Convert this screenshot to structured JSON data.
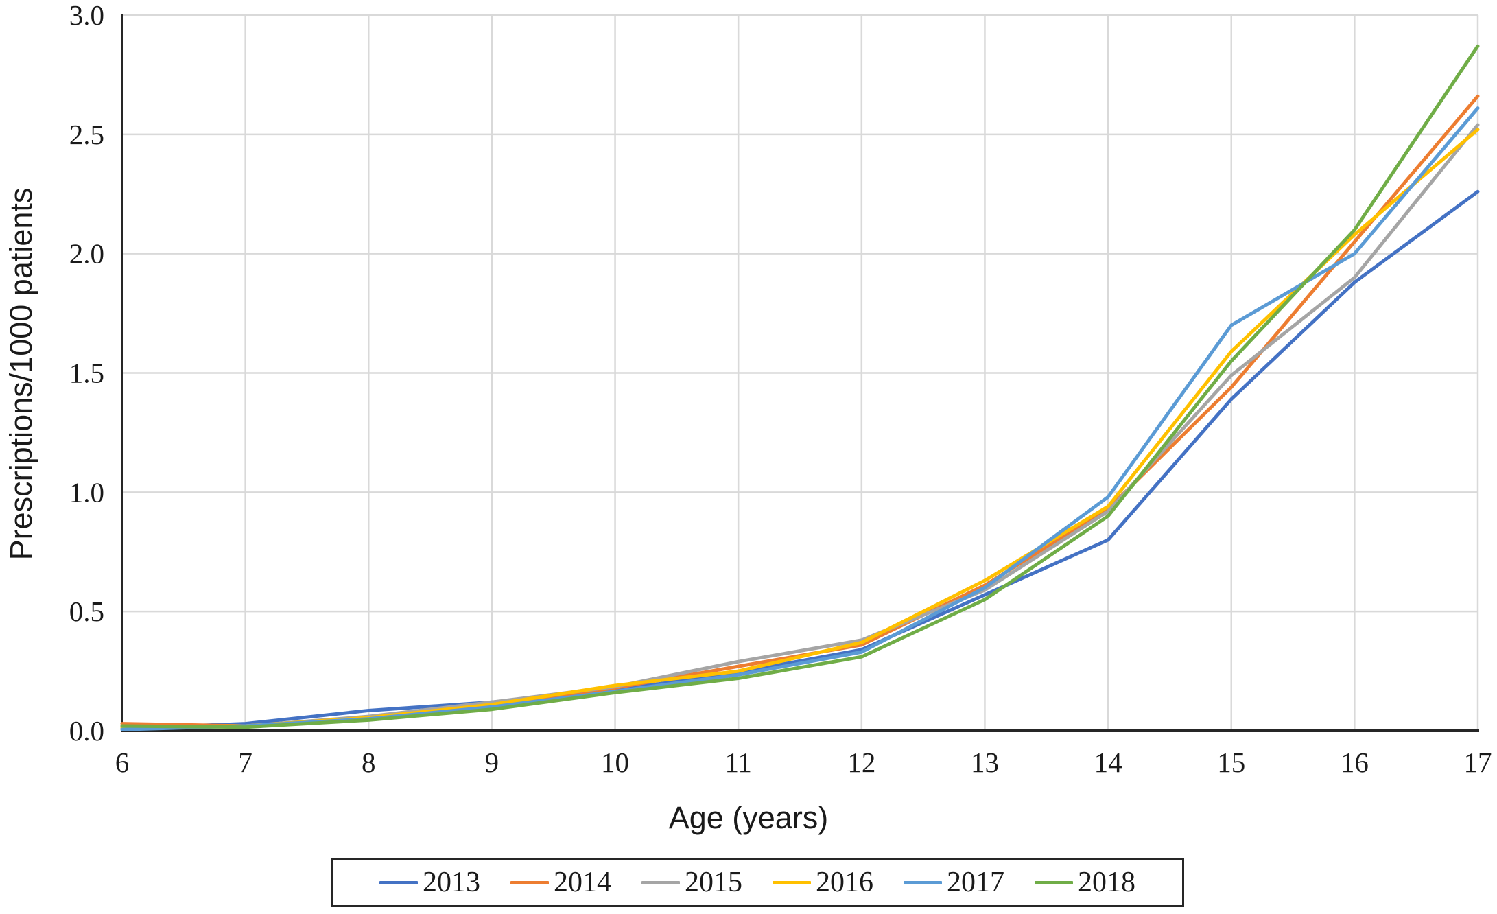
{
  "figure": {
    "background": "#ffffff",
    "axis_color": "#262626",
    "grid_color": "#D9D9D9",
    "text_color": "#1a1a1a"
  },
  "chart_data": {
    "type": "line",
    "title": "",
    "xlabel": "Age (years)",
    "ylabel": "Prescriptions/1000 patients",
    "grid": true,
    "legend_position": "bottom",
    "xlim": [
      6,
      17
    ],
    "ylim": [
      0,
      3.0
    ],
    "x": [
      6,
      7,
      8,
      9,
      10,
      11,
      12,
      13,
      14,
      15,
      16,
      17
    ],
    "x_tick_labels": [
      "6",
      "7",
      "8",
      "9",
      "10",
      "11",
      "12",
      "13",
      "14",
      "15",
      "16",
      "17"
    ],
    "y_tick_labels": [
      "0.0",
      "0.5",
      "1.0",
      "1.5",
      "2.0",
      "2.5",
      "3.0"
    ],
    "series": [
      {
        "name": "2013",
        "color": "#4472C4",
        "values": [
          0.01,
          0.03,
          0.085,
          0.12,
          0.17,
          0.245,
          0.34,
          0.57,
          0.8,
          1.39,
          1.88,
          2.26
        ]
      },
      {
        "name": "2014",
        "color": "#ED7D31",
        "values": [
          0.03,
          0.02,
          0.055,
          0.105,
          0.18,
          0.27,
          0.36,
          0.61,
          0.93,
          1.44,
          2.05,
          2.66
        ]
      },
      {
        "name": "2015",
        "color": "#A5A5A5",
        "values": [
          0.01,
          0.02,
          0.06,
          0.12,
          0.185,
          0.29,
          0.38,
          0.59,
          0.92,
          1.49,
          1.9,
          2.54
        ]
      },
      {
        "name": "2016",
        "color": "#FFC000",
        "values": [
          0.015,
          0.02,
          0.055,
          0.11,
          0.19,
          0.25,
          0.37,
          0.63,
          0.94,
          1.59,
          2.08,
          2.52
        ]
      },
      {
        "name": "2017",
        "color": "#5B9BD5",
        "values": [
          0.005,
          0.02,
          0.05,
          0.1,
          0.165,
          0.235,
          0.33,
          0.6,
          0.98,
          1.7,
          2.0,
          2.61
        ]
      },
      {
        "name": "2018",
        "color": "#70AD47",
        "values": [
          0.02,
          0.015,
          0.045,
          0.09,
          0.16,
          0.22,
          0.31,
          0.55,
          0.9,
          1.55,
          2.1,
          2.87
        ]
      }
    ]
  }
}
